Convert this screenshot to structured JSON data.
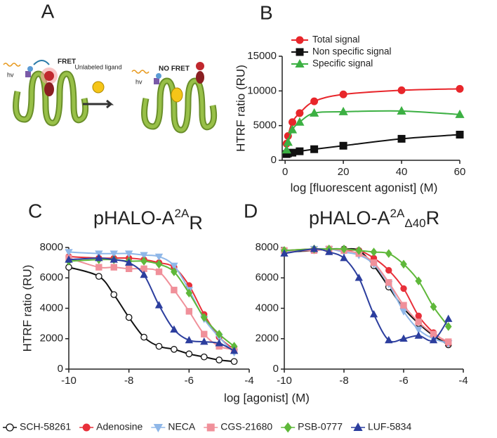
{
  "diagram": {
    "label": "A",
    "fret": "FRET",
    "ligand": "Unlabeled ligand",
    "no_fret": "NO FRET",
    "hv_left": "hv",
    "hv_right": "hv"
  },
  "shared_x_label": "log [agonist] (M)",
  "chart_data": [
    {
      "type": "line",
      "panel_label": "B",
      "y_label": "HTRF ratio (RU)",
      "x_label": "log [fluorescent agonist] (M)",
      "x": [
        0.5,
        1,
        2.5,
        5,
        10,
        20,
        40,
        60
      ],
      "series": [
        {
          "name": "Total signal",
          "color": "#e8262b",
          "marker": "circle",
          "values": [
            2400,
            3500,
            5500,
            6800,
            8500,
            9500,
            10100,
            10300
          ]
        },
        {
          "name": "Non specific signal",
          "color": "#111111",
          "marker": "square",
          "values": [
            900,
            1000,
            1100,
            1300,
            1600,
            2100,
            3100,
            3700
          ]
        },
        {
          "name": "Specific signal",
          "color": "#3cb043",
          "marker": "triangle",
          "values": [
            1500,
            2600,
            4400,
            5500,
            6800,
            7000,
            7100,
            6600
          ]
        }
      ],
      "xlim": [
        -1,
        60
      ],
      "xticks": [
        0,
        20,
        40,
        60
      ],
      "ylim": [
        0,
        15000
      ],
      "yticks": [
        0,
        5000,
        10000,
        15000
      ],
      "legend": "top"
    },
    {
      "type": "line",
      "panel_label": "C",
      "title_parts": [
        "pHALO-A",
        "2A",
        "R"
      ],
      "y_label": "HTRF ratio (RU)",
      "x": [
        -10,
        -9,
        -8.5,
        -8,
        -7.5,
        -7,
        -6.5,
        -6,
        -5.5,
        -5,
        -4.5
      ],
      "series": [
        {
          "name": "SCH-58261",
          "color": "#111111",
          "marker": "circle-open",
          "values": [
            6700,
            6100,
            4900,
            3400,
            2100,
            1500,
            1300,
            1000,
            800,
            600,
            500
          ]
        },
        {
          "name": "Adenosine",
          "color": "#e8303a",
          "marker": "circle",
          "values": [
            7400,
            7300,
            7300,
            7300,
            7200,
            7000,
            6700,
            5500,
            3600,
            2100,
            1300
          ]
        },
        {
          "name": "NECA",
          "color": "#8fb7e8",
          "marker": "triangle-down",
          "values": [
            7700,
            7600,
            7600,
            7600,
            7500,
            7400,
            6800,
            5200,
            3300,
            2100,
            1100
          ]
        },
        {
          "name": "CGS-21680",
          "color": "#f0909a",
          "marker": "square",
          "values": [
            7300,
            6700,
            6700,
            6600,
            6600,
            6400,
            5200,
            3800,
            2300,
            1500,
            1300
          ]
        },
        {
          "name": "PSB-0777",
          "color": "#5fb83a",
          "marker": "diamond",
          "values": [
            7100,
            7200,
            7200,
            7100,
            7100,
            6900,
            6400,
            5000,
            3400,
            2300,
            1500
          ]
        },
        {
          "name": "LUF-5834",
          "color": "#2c3e9e",
          "marker": "triangle",
          "values": [
            7200,
            7300,
            7200,
            7000,
            6200,
            4200,
            2600,
            1900,
            1800,
            1700,
            1200
          ]
        }
      ],
      "xlim": [
        -10,
        -4
      ],
      "xticks": [
        -10,
        -8,
        -6,
        -4
      ],
      "ylim": [
        0,
        8000
      ],
      "yticks": [
        0,
        2000,
        4000,
        6000,
        8000
      ],
      "legend": "bottom"
    },
    {
      "type": "line",
      "panel_label": "D",
      "title_parts": [
        "pHALO-A",
        "2A",
        "Δ40",
        "R"
      ],
      "x": [
        -10,
        -9,
        -8.5,
        -8,
        -7.5,
        -7,
        -6.5,
        -6,
        -5.5,
        -5,
        -4.5
      ],
      "series": [
        {
          "color": "#111111",
          "marker": "circle-open",
          "values": [
            7700,
            7800,
            7900,
            7900,
            7800,
            6800,
            5400,
            4000,
            3000,
            2200,
            1600
          ]
        },
        {
          "color": "#e8303a",
          "marker": "circle",
          "values": [
            7800,
            7900,
            7900,
            7800,
            7800,
            7300,
            6500,
            5300,
            3500,
            2400,
            1700
          ]
        },
        {
          "color": "#8fb7e8",
          "marker": "triangle-down",
          "values": [
            7700,
            7900,
            7900,
            7700,
            7500,
            6900,
            5600,
            3800,
            2600,
            2000,
            1700
          ]
        },
        {
          "color": "#f0909a",
          "marker": "square",
          "values": [
            7800,
            7800,
            7900,
            7800,
            7600,
            7000,
            5700,
            4200,
            3100,
            2300,
            1800
          ]
        },
        {
          "color": "#5fb83a",
          "marker": "diamond",
          "values": [
            7800,
            7900,
            7900,
            7900,
            7800,
            7700,
            7600,
            6900,
            5800,
            4100,
            2800
          ]
        },
        {
          "color": "#2c3e9e",
          "marker": "triangle",
          "values": [
            7600,
            7900,
            7700,
            7300,
            6000,
            3600,
            1900,
            2000,
            2200,
            1900,
            3300
          ]
        }
      ],
      "xlim": [
        -10,
        -4
      ],
      "xticks": [
        -10,
        -8,
        -6,
        -4
      ],
      "ylim": [
        0,
        8000
      ],
      "yticks": [
        0,
        2000,
        4000,
        6000,
        8000
      ]
    }
  ]
}
